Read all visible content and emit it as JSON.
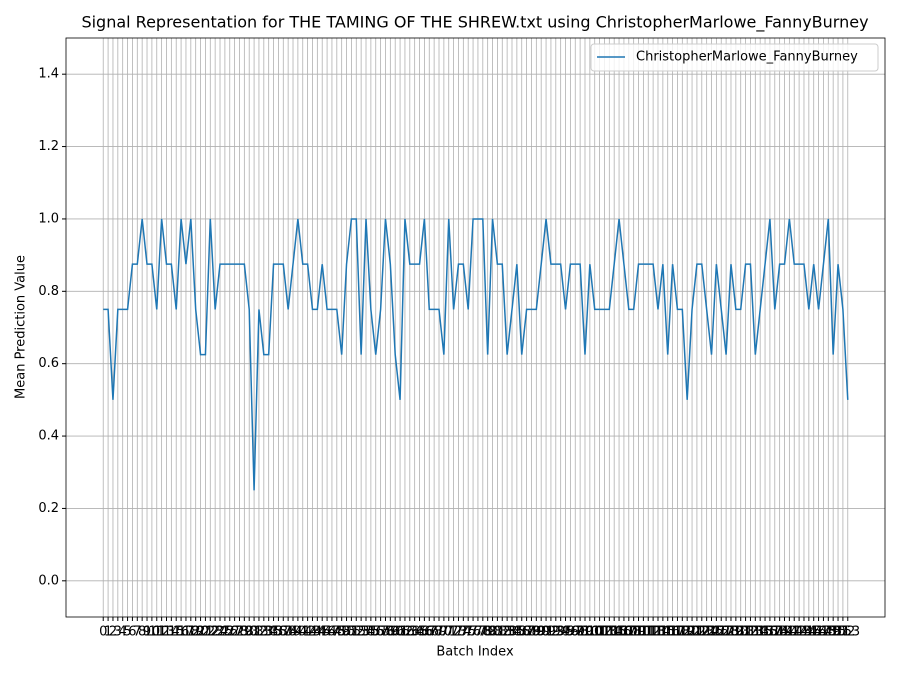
{
  "chart_data": {
    "type": "line",
    "title": "Signal Representation for THE TAMING OF THE SHREW.txt using ChristopherMarlowe_FannyBurney",
    "x_label": "Batch Index",
    "y_label": "Mean Prediction Value",
    "x": [
      0,
      1,
      2,
      3,
      4,
      5,
      6,
      7,
      8,
      9,
      10,
      11,
      12,
      13,
      14,
      15,
      16,
      17,
      18,
      19,
      20,
      21,
      22,
      23,
      24,
      25,
      26,
      27,
      28,
      29,
      30,
      31,
      32,
      33,
      34,
      35,
      36,
      37,
      38,
      39,
      40,
      41,
      42,
      43,
      44,
      45,
      46,
      47,
      48,
      49,
      50,
      51,
      52,
      53,
      54,
      55,
      56,
      57,
      58,
      59,
      60,
      61,
      62,
      63,
      64,
      65,
      66,
      67,
      68,
      69,
      70,
      71,
      72,
      73,
      74,
      75,
      76,
      77,
      78,
      79,
      80,
      81,
      82,
      83,
      84,
      85,
      86,
      87,
      88,
      89,
      90,
      91,
      92,
      93,
      94,
      95,
      96,
      97,
      98,
      99,
      100,
      101,
      102,
      103,
      104,
      105,
      106,
      107,
      108,
      109,
      110,
      111,
      112,
      113,
      114,
      115,
      116,
      117,
      118,
      119,
      120,
      121,
      122,
      123,
      124,
      125,
      126,
      127,
      128,
      129,
      130,
      131,
      132,
      133,
      134,
      135,
      136,
      137,
      138,
      139,
      140,
      141,
      142,
      143,
      144,
      145,
      146,
      147,
      148,
      149,
      150,
      151,
      152,
      153
    ],
    "series": [
      {
        "name": "ChristopherMarlowe_FannyBurney",
        "color": "#1f77b4",
        "values": [
          0.75,
          0.75,
          0.5,
          0.75,
          0.75,
          0.75,
          0.875,
          0.875,
          1.0,
          0.875,
          0.875,
          0.75,
          1.0,
          0.875,
          0.875,
          0.75,
          1.0,
          0.875,
          1.0,
          0.75,
          0.625,
          0.625,
          1.0,
          0.75,
          0.875,
          0.875,
          0.875,
          0.875,
          0.875,
          0.875,
          0.75,
          0.25,
          0.75,
          0.625,
          0.625,
          0.875,
          0.875,
          0.875,
          0.75,
          0.875,
          1.0,
          0.875,
          0.875,
          0.75,
          0.75,
          0.875,
          0.75,
          0.75,
          0.75,
          0.625,
          0.875,
          1.0,
          1.0,
          0.625,
          1.0,
          0.75,
          0.625,
          0.75,
          1.0,
          0.875,
          0.625,
          0.5,
          1.0,
          0.875,
          0.875,
          0.875,
          1.0,
          0.75,
          0.75,
          0.75,
          0.625,
          1.0,
          0.75,
          0.875,
          0.875,
          0.75,
          1.0,
          1.0,
          1.0,
          0.625,
          1.0,
          0.875,
          0.875,
          0.625,
          0.75,
          0.875,
          0.625,
          0.75,
          0.75,
          0.75,
          0.875,
          1.0,
          0.875,
          0.875,
          0.875,
          0.75,
          0.875,
          0.875,
          0.875,
          0.625,
          0.875,
          0.75,
          0.75,
          0.75,
          0.75,
          0.875,
          1.0,
          0.875,
          0.75,
          0.75,
          0.875,
          0.875,
          0.875,
          0.875,
          0.75,
          0.875,
          0.625,
          0.875,
          0.75,
          0.75,
          0.5,
          0.75,
          0.875,
          0.875,
          0.75,
          0.625,
          0.875,
          0.75,
          0.625,
          0.875,
          0.75,
          0.75,
          0.875,
          0.875,
          0.625,
          0.75,
          0.875,
          1.0,
          0.75,
          0.875,
          0.875,
          1.0,
          0.875,
          0.875,
          0.875,
          0.75,
          0.875,
          0.75,
          0.875,
          1.0,
          0.625,
          0.875,
          0.75,
          0.5
        ]
      }
    ],
    "xlim": [
      -7.65,
      160.65
    ],
    "xticks": [
      0,
      1,
      2,
      3,
      4,
      5,
      6,
      7,
      8,
      9,
      10,
      11,
      12,
      13,
      14,
      15,
      16,
      17,
      18,
      19,
      20,
      21,
      22,
      23,
      24,
      25,
      26,
      27,
      28,
      29,
      30,
      31,
      32,
      33,
      34,
      35,
      36,
      37,
      38,
      39,
      40,
      41,
      42,
      43,
      44,
      45,
      46,
      47,
      48,
      49,
      50,
      51,
      52,
      53,
      54,
      55,
      56,
      57,
      58,
      59,
      60,
      61,
      62,
      63,
      64,
      65,
      66,
      67,
      68,
      69,
      70,
      71,
      72,
      73,
      74,
      75,
      76,
      77,
      78,
      79,
      80,
      81,
      82,
      83,
      84,
      85,
      86,
      87,
      88,
      89,
      90,
      91,
      92,
      93,
      94,
      95,
      96,
      97,
      98,
      99,
      100,
      101,
      102,
      103,
      104,
      105,
      106,
      107,
      108,
      109,
      110,
      111,
      112,
      113,
      114,
      115,
      116,
      117,
      118,
      119,
      120,
      121,
      122,
      123,
      124,
      125,
      126,
      127,
      128,
      129,
      130,
      131,
      132,
      133,
      134,
      135,
      136,
      137,
      138,
      139,
      140,
      141,
      142,
      143,
      144,
      145,
      146,
      147,
      148,
      149,
      150,
      151,
      152,
      153
    ],
    "ylim": [
      -0.1,
      1.5
    ],
    "yticks": [
      {
        "value": 0,
        "label": "0.0"
      },
      0.2,
      0.4,
      0.6,
      0.8,
      {
        "value": 1,
        "label": "1.0"
      },
      1.2,
      1.4
    ],
    "grid": true,
    "legend": "upper right"
  }
}
